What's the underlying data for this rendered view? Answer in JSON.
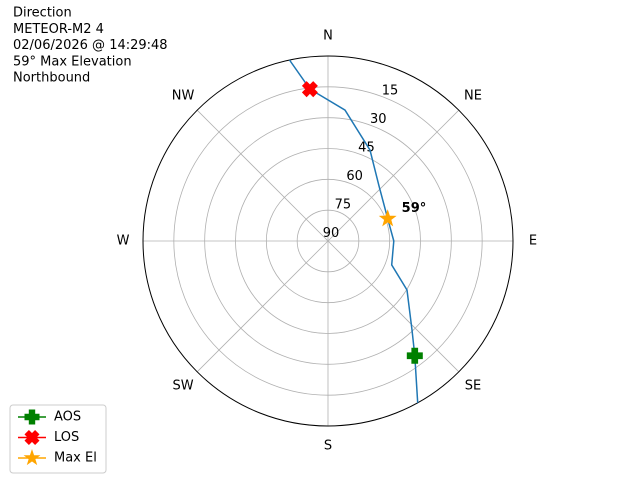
{
  "chart_data": {
    "type": "polar",
    "title_lines": [
      "Direction",
      "METEOR-M2 4",
      "02/06/2026 @ 14:29:48",
      "59° Max Elevation",
      "Northbound"
    ],
    "rlim": [
      90,
      0
    ],
    "rticks": [
      15,
      30,
      45,
      60,
      75,
      90
    ],
    "thetaticks": [
      {
        "value": 0,
        "label": "N"
      },
      {
        "value": 45,
        "label": "NE"
      },
      {
        "value": 90,
        "label": "E"
      },
      {
        "value": 135,
        "label": "SE"
      },
      {
        "value": 180,
        "label": "S"
      },
      {
        "value": 225,
        "label": "SW"
      },
      {
        "value": 270,
        "label": "W"
      },
      {
        "value": 315,
        "label": "NW"
      }
    ],
    "grid": true,
    "legend": "lower left",
    "track": {
      "color": "#1f77b4",
      "x": [
        151,
        142.9,
        136.6,
        121.8,
        110.6,
        90,
        69.5,
        42.8,
        24.8,
        7.4,
        353.2,
        348
      ],
      "values": [
        0,
        20,
        30.5,
        44.8,
        56.9,
        58,
        59,
        53.5,
        41.3,
        25.8,
        15.6,
        0
      ]
    },
    "series": [
      {
        "name": "AOS",
        "color": "green",
        "marker": "plus",
        "x": [
          142.9
        ],
        "values": [
          20
        ]
      },
      {
        "name": "LOS",
        "color": "red",
        "marker": "x",
        "x": [
          353.2
        ],
        "values": [
          15.6
        ]
      },
      {
        "name": "Max El",
        "color": "orange",
        "marker": "star",
        "x": [
          69.5
        ],
        "values": [
          59
        ],
        "value_labels": [
          "59°"
        ]
      }
    ]
  }
}
